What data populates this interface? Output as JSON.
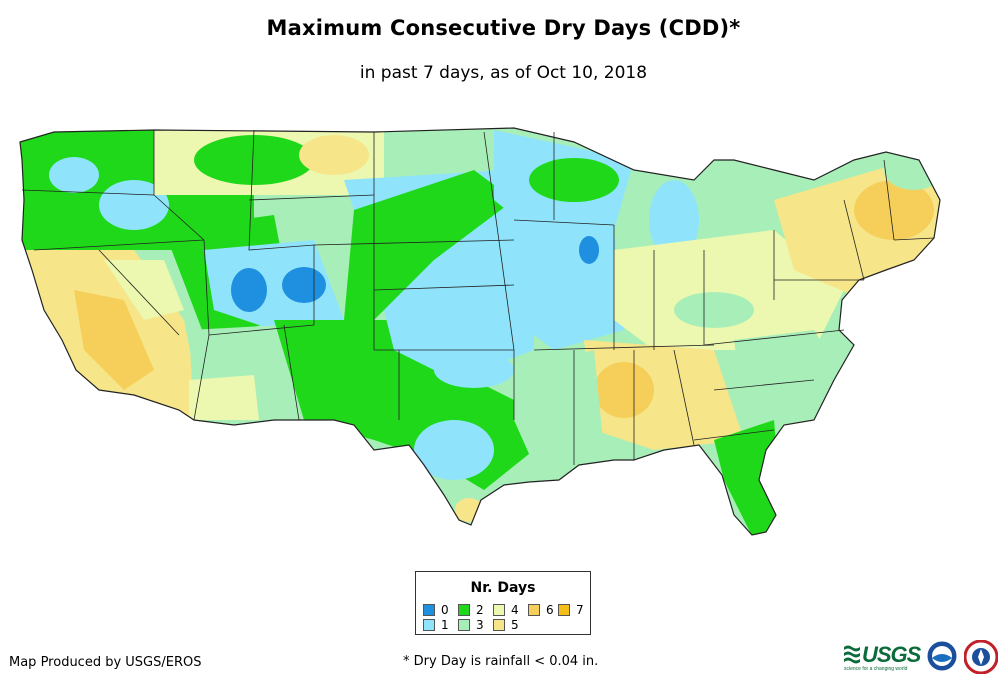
{
  "header": {
    "title": "Maximum Consecutive Dry Days (CDD)*",
    "subtitle": "in past 7 days, as of Oct 10, 2018"
  },
  "map": {
    "region": "Contiguous United States",
    "category_colors": {
      "0": "#1f8fe0",
      "1": "#8fe4fb",
      "2": "#1fd81a",
      "3": "#a8eeb8",
      "4": "#ecf8b0",
      "5": "#f7e58a",
      "6": "#f6cf5a",
      "7": "#f5bd18"
    },
    "border_color": "#222222"
  },
  "legend": {
    "title": "Nr. Days",
    "items": [
      {
        "label": "0",
        "color": "#1f8fe0"
      },
      {
        "label": "1",
        "color": "#8fe4fb"
      },
      {
        "label": "2",
        "color": "#1fd81a"
      },
      {
        "label": "3",
        "color": "#a8eeb8"
      },
      {
        "label": "4",
        "color": "#ecf8b0"
      },
      {
        "label": "5",
        "color": "#f7e58a"
      },
      {
        "label": "6",
        "color": "#f6cf5a"
      },
      {
        "label": "7",
        "color": "#f5bd18"
      }
    ]
  },
  "footer": {
    "credit": "Map Produced by USGS/EROS",
    "note": "* Dry Day is rainfall < 0.04 in.",
    "logos": {
      "usgs": "USGS",
      "usgs_tagline": "science for a changing world",
      "noaa": "noaa-logo",
      "nws": "nws-logo"
    }
  }
}
